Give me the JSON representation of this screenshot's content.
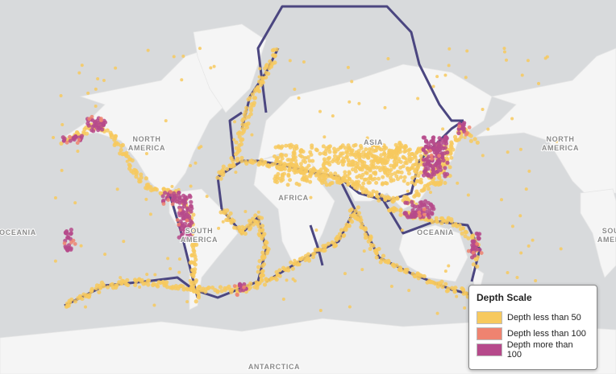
{
  "map": {
    "labels": [
      {
        "lines": [
          "NORTH",
          "AMERICA"
        ]
      },
      {
        "lines": [
          "NORTH",
          "AMERICA"
        ]
      },
      {
        "lines": [
          "AFRICA"
        ]
      },
      {
        "lines": [
          "ASIA"
        ]
      },
      {
        "lines": [
          "OCEANIA"
        ]
      },
      {
        "lines": [
          "OCEANIA"
        ]
      },
      {
        "lines": [
          "SOUTH",
          "AMERICA"
        ]
      },
      {
        "lines": [
          "SOUTH",
          "AMERICA"
        ]
      },
      {
        "lines": [
          "ANTARCTICA"
        ]
      }
    ],
    "legend": {
      "title": "Depth Scale",
      "items": [
        {
          "label": "Depth less than 50",
          "color": "#f7c95e"
        },
        {
          "label": "Depth less than 100",
          "color": "#ef8370"
        },
        {
          "label": "Depth more than 100",
          "color": "#b64a8b"
        }
      ]
    }
  }
}
